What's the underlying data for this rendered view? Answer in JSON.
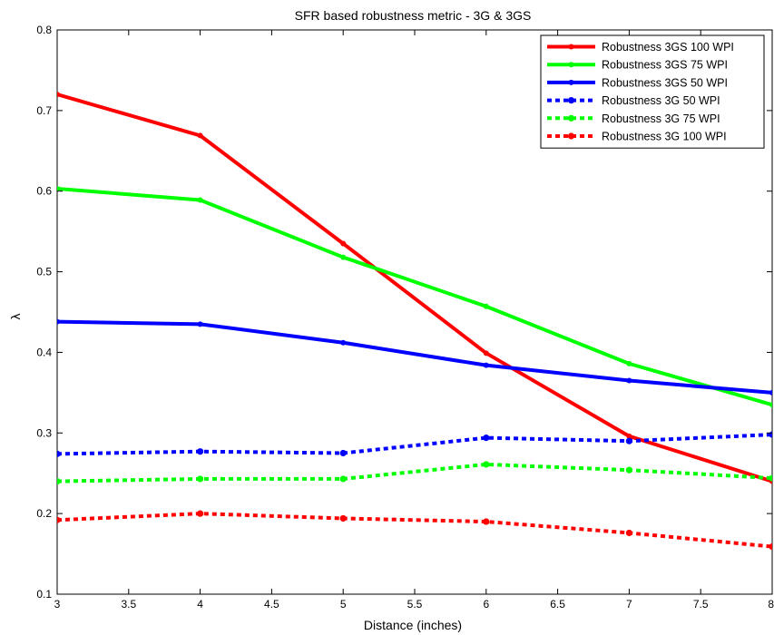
{
  "chart_data": {
    "type": "line",
    "title": "SFR based robustness metric - 3G & 3GS",
    "xlabel": "Distance (inches)",
    "ylabel": "λ",
    "xlim": [
      3,
      8
    ],
    "ylim": [
      0.1,
      0.8
    ],
    "x": [
      3,
      4,
      5,
      6,
      7,
      8
    ],
    "x_ticks": [
      3,
      3.5,
      4,
      4.5,
      5,
      5.5,
      6,
      6.5,
      7,
      7.5,
      8
    ],
    "x_tick_labels": [
      "3",
      "3.5",
      "4",
      "4.5",
      "5",
      "5.5",
      "6",
      "6.5",
      "7",
      "7.5",
      "8"
    ],
    "y_ticks": [
      0.1,
      0.2,
      0.3,
      0.4,
      0.5,
      0.6,
      0.7,
      0.8
    ],
    "y_tick_labels": [
      "0.1",
      "0.2",
      "0.3",
      "0.4",
      "0.5",
      "0.6",
      "0.7",
      "0.8"
    ],
    "grid": false,
    "legend_position": "top-right",
    "series": [
      {
        "name": "Robustness 3GS 100 WPI",
        "color": "#ff0000",
        "style": "solid",
        "values": [
          0.72,
          0.669,
          0.535,
          0.399,
          0.296,
          0.24
        ]
      },
      {
        "name": "Robustness 3GS 75 WPI",
        "color": "#00ff00",
        "style": "solid",
        "values": [
          0.603,
          0.589,
          0.518,
          0.457,
          0.386,
          0.335
        ]
      },
      {
        "name": "Robustness 3GS 50 WPI",
        "color": "#0000ff",
        "style": "solid",
        "values": [
          0.438,
          0.435,
          0.412,
          0.384,
          0.365,
          0.35
        ]
      },
      {
        "name": "Robustness 3G 50 WPI",
        "color": "#0000ff",
        "style": "dotted",
        "values": [
          0.274,
          0.277,
          0.275,
          0.294,
          0.29,
          0.298
        ]
      },
      {
        "name": "Robustness 3G 75 WPI",
        "color": "#00ff00",
        "style": "dotted",
        "values": [
          0.24,
          0.243,
          0.243,
          0.261,
          0.254,
          0.244
        ]
      },
      {
        "name": "Robustness 3G 100 WPI",
        "color": "#ff0000",
        "style": "dotted",
        "values": [
          0.192,
          0.2,
          0.194,
          0.19,
          0.176,
          0.159
        ]
      }
    ]
  }
}
